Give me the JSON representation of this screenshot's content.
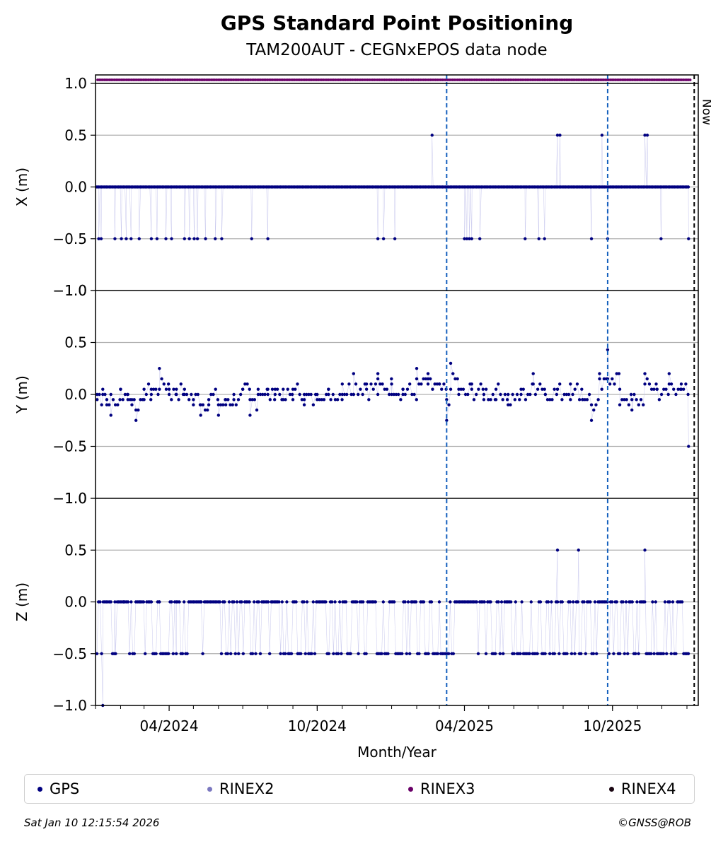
{
  "chart_data": {
    "type": "scatter",
    "title": "GPS Standard Point Positioning",
    "subtitle": "TAM200AUT - CEGNxEPOS data node",
    "xlabel": "Month/Year",
    "x_ticks": [
      "04/2024",
      "10/2024",
      "04/2025",
      "10/2025"
    ],
    "x_range": [
      "2024-01-01",
      "2026-01-15"
    ],
    "event_lines": [
      "2025-03-10",
      "2025-09-25"
    ],
    "now_line": {
      "date": "2026-01-10",
      "label": "Now"
    },
    "grid": true,
    "panels": [
      {
        "ylabel": "X (m)",
        "ylim": [
          -1.0,
          1.0
        ],
        "yticks": [
          "1.0",
          "0.5",
          "0.0",
          "−0.5",
          "−1.0"
        ],
        "baseline": 0.0,
        "outliers": [
          {
            "x": "2024-01-05",
            "y": -0.5
          },
          {
            "x": "2024-01-08",
            "y": -0.5
          },
          {
            "x": "2024-01-25",
            "y": -0.5
          },
          {
            "x": "2024-02-02",
            "y": -0.5
          },
          {
            "x": "2024-02-08",
            "y": -0.5
          },
          {
            "x": "2024-02-14",
            "y": -0.5
          },
          {
            "x": "2024-02-24",
            "y": -0.5
          },
          {
            "x": "2024-03-10",
            "y": -0.5
          },
          {
            "x": "2024-03-17",
            "y": -0.5
          },
          {
            "x": "2024-03-28",
            "y": -0.5
          },
          {
            "x": "2024-04-04",
            "y": -0.5
          },
          {
            "x": "2024-04-20",
            "y": -0.5
          },
          {
            "x": "2024-04-26",
            "y": -0.5
          },
          {
            "x": "2024-05-02",
            "y": -0.5
          },
          {
            "x": "2024-05-06",
            "y": -0.5
          },
          {
            "x": "2024-05-16",
            "y": -0.5
          },
          {
            "x": "2024-05-28",
            "y": -0.5
          },
          {
            "x": "2024-06-05",
            "y": -0.5
          },
          {
            "x": "2024-07-12",
            "y": -0.5
          },
          {
            "x": "2024-08-01",
            "y": -0.5
          },
          {
            "x": "2024-12-15",
            "y": -0.5
          },
          {
            "x": "2024-12-22",
            "y": -0.5
          },
          {
            "x": "2025-01-05",
            "y": -0.5
          },
          {
            "x": "2025-02-20",
            "y": 0.5
          },
          {
            "x": "2025-04-01",
            "y": -0.5
          },
          {
            "x": "2025-04-04",
            "y": -0.5
          },
          {
            "x": "2025-04-07",
            "y": -0.5
          },
          {
            "x": "2025-04-10",
            "y": -0.5
          },
          {
            "x": "2025-04-20",
            "y": -0.5
          },
          {
            "x": "2025-06-15",
            "y": -0.5
          },
          {
            "x": "2025-07-02",
            "y": -0.5
          },
          {
            "x": "2025-07-09",
            "y": -0.5
          },
          {
            "x": "2025-07-25",
            "y": 0.5
          },
          {
            "x": "2025-07-28",
            "y": 0.5
          },
          {
            "x": "2025-09-05",
            "y": -0.5
          },
          {
            "x": "2025-09-18",
            "y": 0.5
          },
          {
            "x": "2025-09-25",
            "y": -0.5
          },
          {
            "x": "2025-11-10",
            "y": 0.5
          },
          {
            "x": "2025-11-13",
            "y": 0.5
          },
          {
            "x": "2025-11-30",
            "y": -0.5
          },
          {
            "x": "2026-01-03",
            "y": -0.5
          }
        ]
      },
      {
        "ylabel": "Y (m)",
        "ylim": [
          -1.0,
          1.0
        ],
        "yticks": [
          "1.0",
          "0.5",
          "0.0",
          "−0.5",
          "−1.0"
        ],
        "series_points": [
          {
            "x": "2024-01-03",
            "y": -0.05
          },
          {
            "x": "2024-01-10",
            "y": 0.05
          },
          {
            "x": "2024-01-15",
            "y": -0.1
          },
          {
            "x": "2024-01-20",
            "y": -0.2
          },
          {
            "x": "2024-02-01",
            "y": 0.05
          },
          {
            "x": "2024-02-10",
            "y": -0.05
          },
          {
            "x": "2024-02-15",
            "y": -0.1
          },
          {
            "x": "2024-02-20",
            "y": -0.25
          },
          {
            "x": "2024-03-01",
            "y": 0.05
          },
          {
            "x": "2024-03-10",
            "y": 0.05
          },
          {
            "x": "2024-03-20",
            "y": 0.25
          },
          {
            "x": "2024-04-01",
            "y": 0.05
          },
          {
            "x": "2024-04-10",
            "y": 0.05
          },
          {
            "x": "2024-04-20",
            "y": 0.0
          },
          {
            "x": "2024-05-01",
            "y": -0.1
          },
          {
            "x": "2024-05-10",
            "y": -0.2
          },
          {
            "x": "2024-05-20",
            "y": -0.1
          },
          {
            "x": "2024-06-01",
            "y": -0.2
          },
          {
            "x": "2024-06-10",
            "y": -0.1
          },
          {
            "x": "2024-06-20",
            "y": -0.05
          },
          {
            "x": "2024-07-01",
            "y": 0.05
          },
          {
            "x": "2024-07-10",
            "y": -0.2
          },
          {
            "x": "2024-07-20",
            "y": 0.05
          },
          {
            "x": "2024-08-01",
            "y": 0.0
          },
          {
            "x": "2024-08-10",
            "y": 0.05
          },
          {
            "x": "2024-08-20",
            "y": -0.05
          },
          {
            "x": "2024-09-01",
            "y": 0.05
          },
          {
            "x": "2024-09-15",
            "y": -0.1
          },
          {
            "x": "2024-10-01",
            "y": 0.0
          },
          {
            "x": "2024-10-15",
            "y": 0.0
          },
          {
            "x": "2024-11-01",
            "y": 0.1
          },
          {
            "x": "2024-11-15",
            "y": 0.2
          },
          {
            "x": "2024-12-01",
            "y": 0.1
          },
          {
            "x": "2024-12-15",
            "y": 0.2
          },
          {
            "x": "2025-01-01",
            "y": 0.1
          },
          {
            "x": "2025-01-15",
            "y": 0.05
          },
          {
            "x": "2025-02-01",
            "y": 0.25
          },
          {
            "x": "2025-02-15",
            "y": 0.2
          },
          {
            "x": "2025-03-01",
            "y": 0.1
          },
          {
            "x": "2025-03-10",
            "y": -0.25
          },
          {
            "x": "2025-03-15",
            "y": 0.3
          },
          {
            "x": "2025-03-25",
            "y": 0.05
          },
          {
            "x": "2025-04-10",
            "y": 0.1
          },
          {
            "x": "2025-04-25",
            "y": 0.0
          },
          {
            "x": "2025-05-10",
            "y": 0.05
          },
          {
            "x": "2025-05-25",
            "y": -0.1
          },
          {
            "x": "2025-06-10",
            "y": 0.05
          },
          {
            "x": "2025-06-25",
            "y": 0.2
          },
          {
            "x": "2025-07-10",
            "y": 0.0
          },
          {
            "x": "2025-07-25",
            "y": 0.05
          },
          {
            "x": "2025-08-10",
            "y": 0.1
          },
          {
            "x": "2025-08-25",
            "y": -0.05
          },
          {
            "x": "2025-09-05",
            "y": -0.25
          },
          {
            "x": "2025-09-15",
            "y": 0.2
          },
          {
            "x": "2025-09-25",
            "y": 0.43
          },
          {
            "x": "2025-10-10",
            "y": -0.1
          },
          {
            "x": "2025-10-25",
            "y": -0.15
          },
          {
            "x": "2025-11-10",
            "y": 0.2
          },
          {
            "x": "2025-11-25",
            "y": 0.05
          },
          {
            "x": "2025-12-10",
            "y": 0.2
          },
          {
            "x": "2025-12-25",
            "y": 0.05
          },
          {
            "x": "2026-01-03",
            "y": -0.5
          }
        ]
      },
      {
        "ylabel": "Z (m)",
        "ylim": [
          -1.0,
          1.0
        ],
        "yticks": [
          "1.0",
          "0.5",
          "0.0",
          "−0.5",
          "−1.0"
        ],
        "baseline": -0.5,
        "outliers": [
          {
            "x": "2024-01-10",
            "y": -1.0
          },
          {
            "x": "2024-01-25",
            "y": 0.0
          },
          {
            "x": "2024-02-05",
            "y": 0.0
          },
          {
            "x": "2024-02-24",
            "y": 0.0
          },
          {
            "x": "2024-03-20",
            "y": 0.0
          },
          {
            "x": "2024-04-10",
            "y": 0.0
          },
          {
            "x": "2024-05-10",
            "y": 0.0
          },
          {
            "x": "2025-07-25",
            "y": 0.5
          },
          {
            "x": "2025-08-20",
            "y": 0.5
          },
          {
            "x": "2025-11-10",
            "y": 0.5
          }
        ]
      }
    ]
  },
  "legend": {
    "items": [
      {
        "label": "GPS",
        "color": "#000080"
      },
      {
        "label": "RINEX2",
        "color": "#7b78c0"
      },
      {
        "label": "RINEX3",
        "color": "#6a0068"
      },
      {
        "label": "RINEX4",
        "color": "#1a0612"
      }
    ]
  },
  "footer": {
    "timestamp": "Sat Jan 10 12:15:54 2026",
    "credit": "©GNSS@ROB"
  },
  "colors": {
    "points": "#000080",
    "event_line": "#1560bd",
    "grid": "#b0b0b0",
    "rinex3_strip": "#6a0068"
  }
}
